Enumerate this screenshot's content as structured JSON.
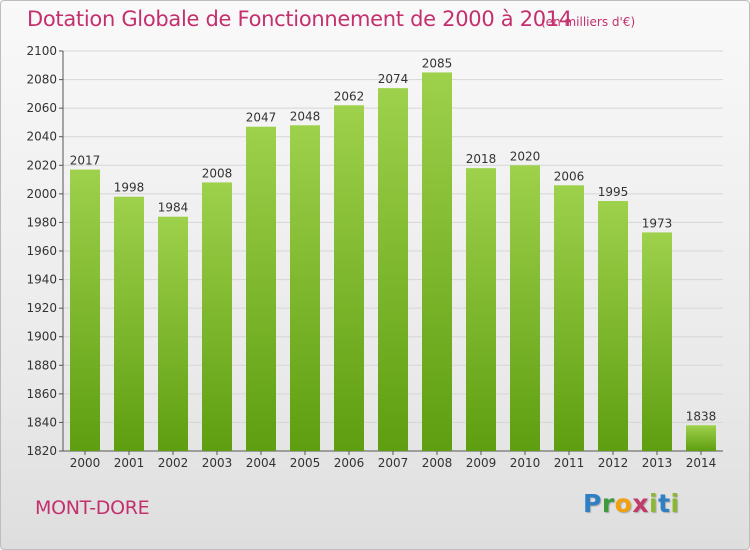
{
  "title": "Dotation Globale de Fonctionnement de 2000 à 2014",
  "subtitle": "(en milliers d'€)",
  "commune": "MONT-DORE",
  "logo": {
    "text": "Proxiti",
    "letters": [
      "P",
      "r",
      "o",
      "x",
      "i",
      "t",
      "i"
    ]
  },
  "colors": {
    "title": "#c4306e",
    "bar_top": "#9ed14c",
    "bar_bottom": "#5e9e10",
    "grid": "#d6d6d6"
  },
  "chart_data": {
    "type": "bar",
    "title": "Dotation Globale de Fonctionnement de 2000 à 2014",
    "subtitle": "(en milliers d'€)",
    "categories": [
      "2000",
      "2001",
      "2002",
      "2003",
      "2004",
      "2005",
      "2006",
      "2007",
      "2008",
      "2009",
      "2010",
      "2011",
      "2012",
      "2013",
      "2014"
    ],
    "values": [
      2017,
      1998,
      1984,
      2008,
      2047,
      2048,
      2062,
      2074,
      2085,
      2018,
      2020,
      2006,
      1995,
      1973,
      1838
    ],
    "ylim": [
      1820,
      2100
    ],
    "yticks": [
      1820,
      1840,
      1860,
      1880,
      1900,
      1920,
      1940,
      1960,
      1980,
      2000,
      2020,
      2040,
      2060,
      2080,
      2100
    ],
    "grid": true,
    "legend": "none"
  }
}
